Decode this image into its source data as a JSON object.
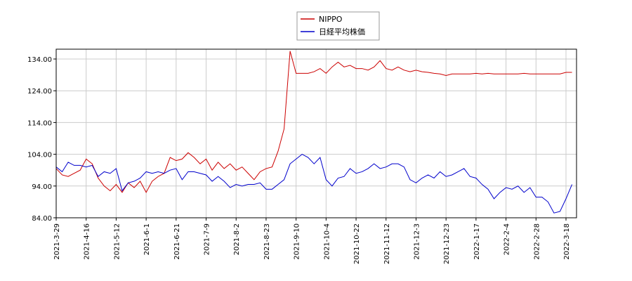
{
  "chart_data": {
    "type": "line",
    "categories": [
      "2021-3-29",
      null,
      null,
      null,
      null,
      "2021-4-16",
      null,
      null,
      null,
      null,
      "2021-5-12",
      null,
      null,
      null,
      null,
      "2021-6-1",
      null,
      null,
      null,
      null,
      "2021-6-21",
      null,
      null,
      null,
      null,
      "2021-7-9",
      null,
      null,
      null,
      null,
      "2021-8-2",
      null,
      null,
      null,
      null,
      "2021-8-23",
      null,
      null,
      null,
      null,
      "2021-9-10",
      null,
      null,
      null,
      null,
      "2021-10-4",
      null,
      null,
      null,
      null,
      "2021-10-22",
      null,
      null,
      null,
      null,
      "2021-11-12",
      null,
      null,
      null,
      null,
      "2021-12-3",
      null,
      null,
      null,
      null,
      "2021-12-23",
      null,
      null,
      null,
      null,
      "2022-1-17",
      null,
      null,
      null,
      null,
      "2022-2-4",
      null,
      null,
      null,
      null,
      "2022-2-28",
      null,
      null,
      null,
      null,
      "2022-3-18",
      null
    ],
    "series": [
      {
        "name": "NIPPO",
        "color": "#cc0000",
        "values": [
          99.5,
          97.5,
          97,
          98,
          99,
          102.5,
          101,
          96.5,
          94,
          92.5,
          94.5,
          92,
          95,
          93.5,
          95.5,
          92,
          95.5,
          97,
          98,
          103,
          102,
          102.5,
          104.5,
          103,
          101,
          102.5,
          99,
          101.5,
          99.5,
          101,
          99,
          100,
          98,
          96,
          98.5,
          99.5,
          100,
          105,
          112,
          136.5,
          129.5,
          129.5,
          129.5,
          130,
          131,
          129.5,
          131.5,
          133,
          131.5,
          132,
          131,
          131,
          130.5,
          131.5,
          133.5,
          131,
          130.5,
          131.5,
          130.5,
          130,
          130.5,
          130,
          129.8,
          129.5,
          129.3,
          128.8,
          129.3,
          129.3,
          129.3,
          129.3,
          129.5,
          129.3,
          129.5,
          129.3,
          129.3,
          129.3,
          129.3,
          129.3,
          129.5,
          129.3,
          129.3,
          129.3,
          129.3,
          129.3,
          129.3,
          129.8,
          129.8
        ]
      },
      {
        "name": "日経平均株価",
        "color": "#0000cc",
        "values": [
          100,
          98.5,
          101.5,
          100.5,
          100.5,
          100,
          100.5,
          97,
          98.5,
          98,
          99.5,
          92.5,
          95,
          95.5,
          96.5,
          98.5,
          98,
          98.5,
          98,
          99,
          99.5,
          96,
          98.5,
          98.5,
          98,
          97.5,
          95.5,
          97,
          95.5,
          93.5,
          94.5,
          94,
          94.5,
          94.5,
          95,
          93,
          93,
          94.5,
          96,
          101,
          102.5,
          104,
          103,
          101,
          103,
          96,
          94,
          96.5,
          97,
          99.5,
          98,
          98.5,
          99.5,
          101,
          99.5,
          100,
          101,
          101,
          100,
          96,
          95,
          96.5,
          97.5,
          96.5,
          98.5,
          97,
          97.5,
          98.5,
          99.5,
          97,
          96.5,
          94.5,
          93,
          90,
          92,
          93.5,
          93,
          94,
          92,
          93.5,
          90.5,
          90.5,
          89,
          85.5,
          86,
          90,
          94.5
        ]
      }
    ],
    "ylim": [
      84,
      137.1
    ],
    "yticks": [
      {
        "value": 84,
        "label": "84.00"
      },
      {
        "value": 94,
        "label": "94.00"
      },
      {
        "value": 104,
        "label": "104.00"
      },
      {
        "value": 114,
        "label": "114.00"
      },
      {
        "value": 124,
        "label": "124.00"
      },
      {
        "value": 134,
        "label": "134.00"
      }
    ],
    "grid": true
  }
}
